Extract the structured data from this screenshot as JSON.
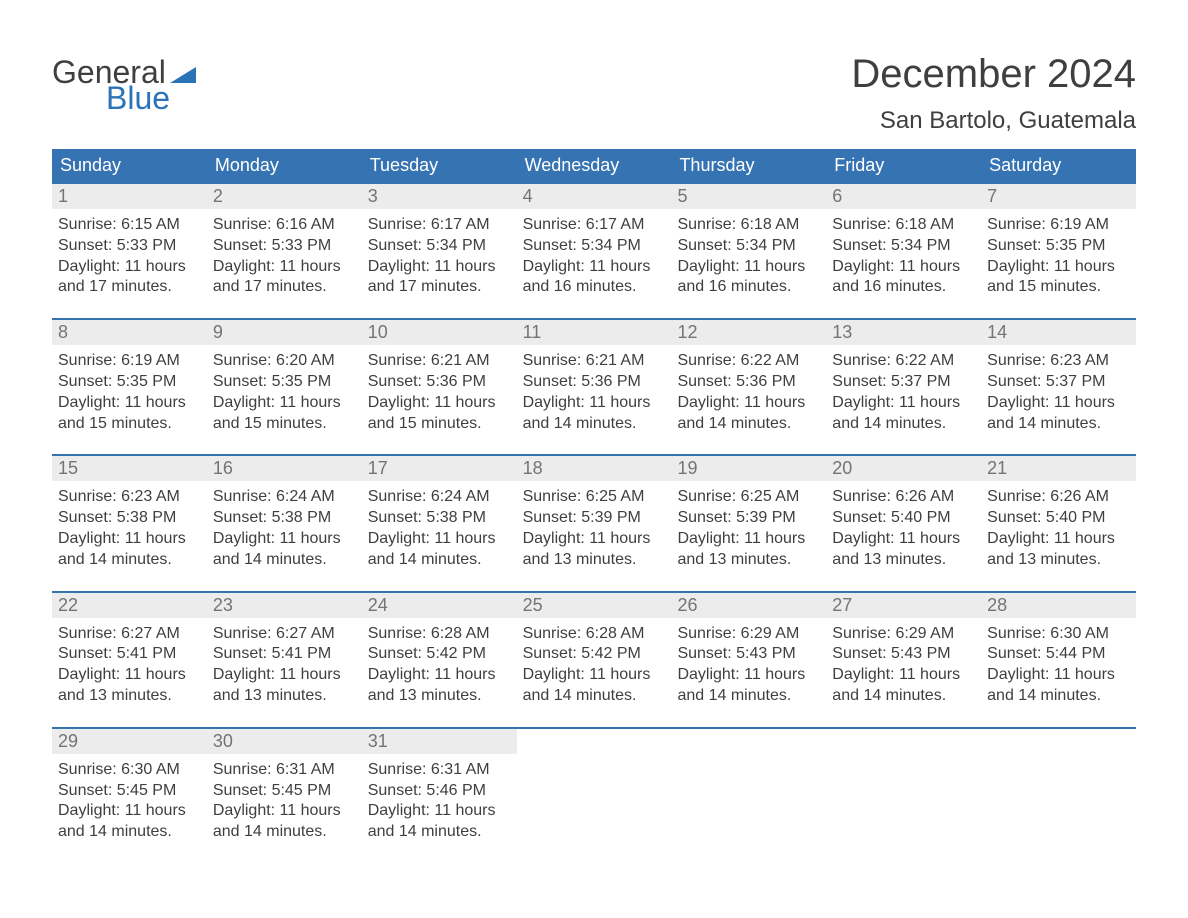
{
  "brand": {
    "general": "General",
    "blue": "Blue",
    "accent": "#2b73b7"
  },
  "title": {
    "month": "December 2024",
    "location": "San Bartolo, Guatemala"
  },
  "colors": {
    "header_bg": "#3573b3",
    "header_fg": "#ffffff",
    "daynum_bg": "#ececec",
    "daynum_fg": "#747474",
    "body_fg": "#3f3f3f",
    "page_bg": "#ffffff",
    "week_border": "#3573b3"
  },
  "typography": {
    "month_fontsize": 40,
    "location_fontsize": 24,
    "dayheader_fontsize": 18,
    "daynum_fontsize": 18,
    "body_fontsize": 16
  },
  "layout": {
    "columns": 7,
    "rows": 5,
    "first_weekday": "Sunday"
  },
  "day_labels": [
    "Sunday",
    "Monday",
    "Tuesday",
    "Wednesday",
    "Thursday",
    "Friday",
    "Saturday"
  ],
  "days": [
    {
      "n": "1",
      "sunrise": "Sunrise: 6:15 AM",
      "sunset": "Sunset: 5:33 PM",
      "d1": "Daylight: 11 hours",
      "d2": "and 17 minutes."
    },
    {
      "n": "2",
      "sunrise": "Sunrise: 6:16 AM",
      "sunset": "Sunset: 5:33 PM",
      "d1": "Daylight: 11 hours",
      "d2": "and 17 minutes."
    },
    {
      "n": "3",
      "sunrise": "Sunrise: 6:17 AM",
      "sunset": "Sunset: 5:34 PM",
      "d1": "Daylight: 11 hours",
      "d2": "and 17 minutes."
    },
    {
      "n": "4",
      "sunrise": "Sunrise: 6:17 AM",
      "sunset": "Sunset: 5:34 PM",
      "d1": "Daylight: 11 hours",
      "d2": "and 16 minutes."
    },
    {
      "n": "5",
      "sunrise": "Sunrise: 6:18 AM",
      "sunset": "Sunset: 5:34 PM",
      "d1": "Daylight: 11 hours",
      "d2": "and 16 minutes."
    },
    {
      "n": "6",
      "sunrise": "Sunrise: 6:18 AM",
      "sunset": "Sunset: 5:34 PM",
      "d1": "Daylight: 11 hours",
      "d2": "and 16 minutes."
    },
    {
      "n": "7",
      "sunrise": "Sunrise: 6:19 AM",
      "sunset": "Sunset: 5:35 PM",
      "d1": "Daylight: 11 hours",
      "d2": "and 15 minutes."
    },
    {
      "n": "8",
      "sunrise": "Sunrise: 6:19 AM",
      "sunset": "Sunset: 5:35 PM",
      "d1": "Daylight: 11 hours",
      "d2": "and 15 minutes."
    },
    {
      "n": "9",
      "sunrise": "Sunrise: 6:20 AM",
      "sunset": "Sunset: 5:35 PM",
      "d1": "Daylight: 11 hours",
      "d2": "and 15 minutes."
    },
    {
      "n": "10",
      "sunrise": "Sunrise: 6:21 AM",
      "sunset": "Sunset: 5:36 PM",
      "d1": "Daylight: 11 hours",
      "d2": "and 15 minutes."
    },
    {
      "n": "11",
      "sunrise": "Sunrise: 6:21 AM",
      "sunset": "Sunset: 5:36 PM",
      "d1": "Daylight: 11 hours",
      "d2": "and 14 minutes."
    },
    {
      "n": "12",
      "sunrise": "Sunrise: 6:22 AM",
      "sunset": "Sunset: 5:36 PM",
      "d1": "Daylight: 11 hours",
      "d2": "and 14 minutes."
    },
    {
      "n": "13",
      "sunrise": "Sunrise: 6:22 AM",
      "sunset": "Sunset: 5:37 PM",
      "d1": "Daylight: 11 hours",
      "d2": "and 14 minutes."
    },
    {
      "n": "14",
      "sunrise": "Sunrise: 6:23 AM",
      "sunset": "Sunset: 5:37 PM",
      "d1": "Daylight: 11 hours",
      "d2": "and 14 minutes."
    },
    {
      "n": "15",
      "sunrise": "Sunrise: 6:23 AM",
      "sunset": "Sunset: 5:38 PM",
      "d1": "Daylight: 11 hours",
      "d2": "and 14 minutes."
    },
    {
      "n": "16",
      "sunrise": "Sunrise: 6:24 AM",
      "sunset": "Sunset: 5:38 PM",
      "d1": "Daylight: 11 hours",
      "d2": "and 14 minutes."
    },
    {
      "n": "17",
      "sunrise": "Sunrise: 6:24 AM",
      "sunset": "Sunset: 5:38 PM",
      "d1": "Daylight: 11 hours",
      "d2": "and 14 minutes."
    },
    {
      "n": "18",
      "sunrise": "Sunrise: 6:25 AM",
      "sunset": "Sunset: 5:39 PM",
      "d1": "Daylight: 11 hours",
      "d2": "and 13 minutes."
    },
    {
      "n": "19",
      "sunrise": "Sunrise: 6:25 AM",
      "sunset": "Sunset: 5:39 PM",
      "d1": "Daylight: 11 hours",
      "d2": "and 13 minutes."
    },
    {
      "n": "20",
      "sunrise": "Sunrise: 6:26 AM",
      "sunset": "Sunset: 5:40 PM",
      "d1": "Daylight: 11 hours",
      "d2": "and 13 minutes."
    },
    {
      "n": "21",
      "sunrise": "Sunrise: 6:26 AM",
      "sunset": "Sunset: 5:40 PM",
      "d1": "Daylight: 11 hours",
      "d2": "and 13 minutes."
    },
    {
      "n": "22",
      "sunrise": "Sunrise: 6:27 AM",
      "sunset": "Sunset: 5:41 PM",
      "d1": "Daylight: 11 hours",
      "d2": "and 13 minutes."
    },
    {
      "n": "23",
      "sunrise": "Sunrise: 6:27 AM",
      "sunset": "Sunset: 5:41 PM",
      "d1": "Daylight: 11 hours",
      "d2": "and 13 minutes."
    },
    {
      "n": "24",
      "sunrise": "Sunrise: 6:28 AM",
      "sunset": "Sunset: 5:42 PM",
      "d1": "Daylight: 11 hours",
      "d2": "and 13 minutes."
    },
    {
      "n": "25",
      "sunrise": "Sunrise: 6:28 AM",
      "sunset": "Sunset: 5:42 PM",
      "d1": "Daylight: 11 hours",
      "d2": "and 14 minutes."
    },
    {
      "n": "26",
      "sunrise": "Sunrise: 6:29 AM",
      "sunset": "Sunset: 5:43 PM",
      "d1": "Daylight: 11 hours",
      "d2": "and 14 minutes."
    },
    {
      "n": "27",
      "sunrise": "Sunrise: 6:29 AM",
      "sunset": "Sunset: 5:43 PM",
      "d1": "Daylight: 11 hours",
      "d2": "and 14 minutes."
    },
    {
      "n": "28",
      "sunrise": "Sunrise: 6:30 AM",
      "sunset": "Sunset: 5:44 PM",
      "d1": "Daylight: 11 hours",
      "d2": "and 14 minutes."
    },
    {
      "n": "29",
      "sunrise": "Sunrise: 6:30 AM",
      "sunset": "Sunset: 5:45 PM",
      "d1": "Daylight: 11 hours",
      "d2": "and 14 minutes."
    },
    {
      "n": "30",
      "sunrise": "Sunrise: 6:31 AM",
      "sunset": "Sunset: 5:45 PM",
      "d1": "Daylight: 11 hours",
      "d2": "and 14 minutes."
    },
    {
      "n": "31",
      "sunrise": "Sunrise: 6:31 AM",
      "sunset": "Sunset: 5:46 PM",
      "d1": "Daylight: 11 hours",
      "d2": "and 14 minutes."
    }
  ]
}
